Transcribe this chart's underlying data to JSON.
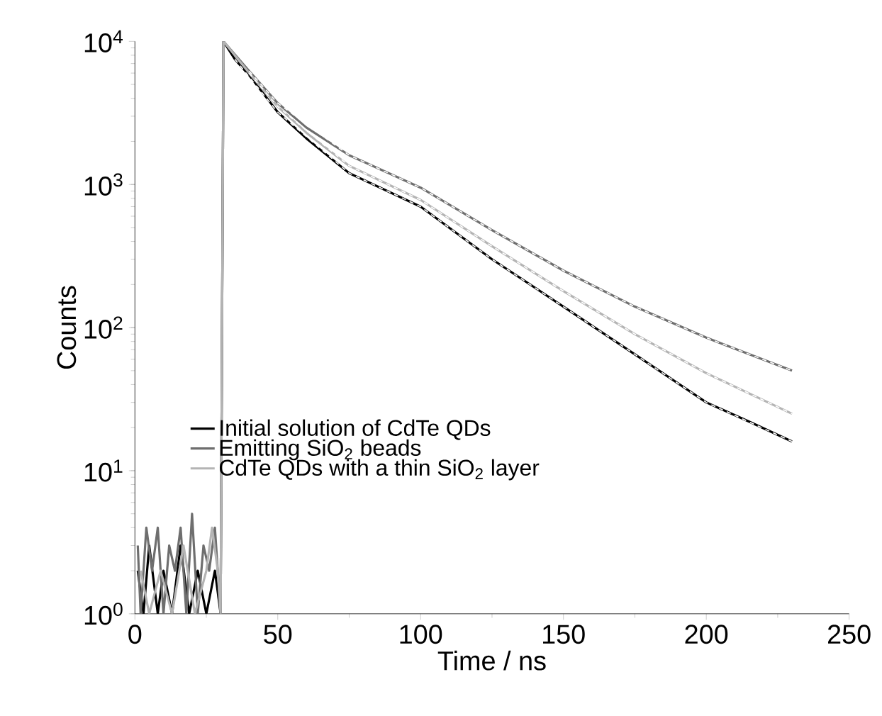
{
  "chart_data": {
    "type": "line",
    "xlabel": "Time / ns",
    "ylabel": "Counts",
    "log": "y",
    "grid": false,
    "legend": "bottom left",
    "xlim": [
      0,
      250
    ],
    "xticks": [
      0,
      50,
      100,
      150,
      200,
      250
    ],
    "ylim": [
      1,
      10000
    ],
    "yticks": [
      {
        "value": 1,
        "label": "10$^{0}$"
      },
      {
        "value": 10,
        "label": "10$^{1}$"
      },
      {
        "value": 100,
        "label": "10$^{2}$"
      },
      {
        "value": 1000,
        "label": "10$^{3}$"
      },
      {
        "value": 10000,
        "label": "10$^{4}$"
      }
    ],
    "series": [
      {
        "name": "Initial solution of CdTe QDs",
        "color": "#000000",
        "x": [
          1,
          3,
          5,
          8,
          10,
          13,
          16,
          19,
          22,
          25,
          28,
          30,
          31,
          35,
          40,
          50,
          60,
          75,
          100,
          125,
          150,
          175,
          200,
          215,
          230
        ],
        "values": [
          2,
          1,
          3,
          1,
          2,
          1,
          3,
          1,
          2,
          1,
          2,
          1,
          10000,
          7500,
          5800,
          3200,
          2100,
          1200,
          700,
          300,
          140,
          65,
          30,
          22,
          16
        ]
      },
      {
        "name": "Emitting SiO$_{2}$ beads",
        "color": "#6e6e6e",
        "x": [
          1,
          2,
          4,
          6,
          8,
          10,
          12,
          14,
          16,
          18,
          20,
          22,
          24,
          26,
          28,
          30,
          31,
          40,
          50,
          60,
          75,
          100,
          125,
          150,
          175,
          200,
          230
        ],
        "values": [
          3,
          1,
          4,
          2,
          4,
          1,
          3,
          2,
          4,
          1,
          5,
          1,
          3,
          2,
          4,
          1,
          10000,
          6200,
          3700,
          2500,
          1600,
          950,
          480,
          250,
          140,
          85,
          50
        ]
      },
      {
        "name": "CdTe QDs with a thin SiO$_{2}$ layer",
        "color": "#b4b4b4",
        "x": [
          2,
          5,
          9,
          13,
          17,
          21,
          25,
          27,
          29,
          30,
          31,
          40,
          50,
          60,
          75,
          100,
          125,
          150,
          175,
          200,
          230
        ],
        "values": [
          2,
          1,
          2,
          1,
          3,
          1,
          2,
          4,
          2,
          1,
          10000,
          6000,
          3500,
          2300,
          1350,
          780,
          370,
          180,
          90,
          48,
          25
        ]
      },
      {
        "color": "#ffffff",
        "line_style": "dashed",
        "x": [
          35,
          50,
          75,
          100,
          125,
          150,
          175,
          200,
          230
        ],
        "values": [
          7500,
          3200,
          1200,
          700,
          300,
          140,
          65,
          30,
          16
        ]
      },
      {
        "color": "#ffffff",
        "line_style": "dashed",
        "x": [
          40,
          50,
          75,
          100,
          125,
          150,
          175,
          200,
          230
        ],
        "values": [
          6200,
          3700,
          1600,
          950,
          480,
          250,
          140,
          85,
          50
        ]
      },
      {
        "color": "#ffffff",
        "line_style": "dashed",
        "x": [
          40,
          50,
          75,
          100,
          125,
          150,
          175,
          200,
          230
        ],
        "values": [
          6000,
          3500,
          1350,
          780,
          370,
          180,
          90,
          48,
          25
        ]
      }
    ]
  }
}
